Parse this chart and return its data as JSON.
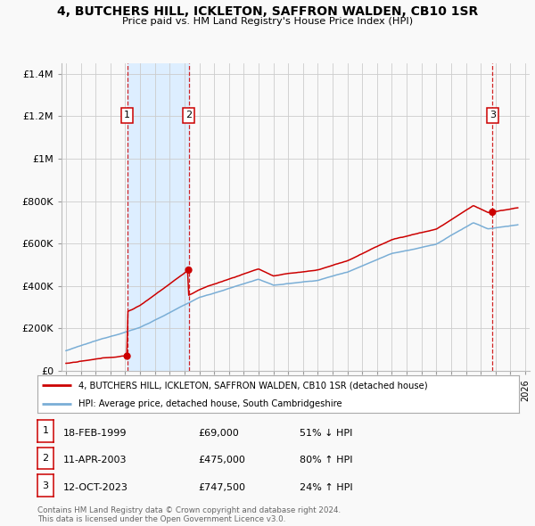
{
  "title": "4, BUTCHERS HILL, ICKLETON, SAFFRON WALDEN, CB10 1SR",
  "subtitle": "Price paid vs. HM Land Registry's House Price Index (HPI)",
  "legend_line1": "4, BUTCHERS HILL, ICKLETON, SAFFRON WALDEN, CB10 1SR (detached house)",
  "legend_line2": "HPI: Average price, detached house, South Cambridgeshire",
  "footnote": "Contains HM Land Registry data © Crown copyright and database right 2024.\nThis data is licensed under the Open Government Licence v3.0.",
  "table_dates": [
    "18-FEB-1999",
    "11-APR-2003",
    "12-OCT-2023"
  ],
  "table_prices": [
    "£69,000",
    "£475,000",
    "£747,500"
  ],
  "table_hpi": [
    "51% ↓ HPI",
    "80% ↑ HPI",
    "24% ↑ HPI"
  ],
  "sale_labels": [
    "1",
    "2",
    "3"
  ],
  "red_color": "#cc0000",
  "blue_color": "#7aaed6",
  "bg_color": "#f9f9f9",
  "grid_color": "#cccccc",
  "highlight_bg": "#ddeeff",
  "ylim": [
    0,
    1450000
  ],
  "xlim_start": 1994.7,
  "xlim_end": 2026.3,
  "vline_x": [
    1999.13,
    2003.28,
    2023.79
  ],
  "sale_prices": [
    69000,
    475000,
    747500
  ],
  "shade_x1": 1999.13,
  "shade_x2": 2003.28
}
